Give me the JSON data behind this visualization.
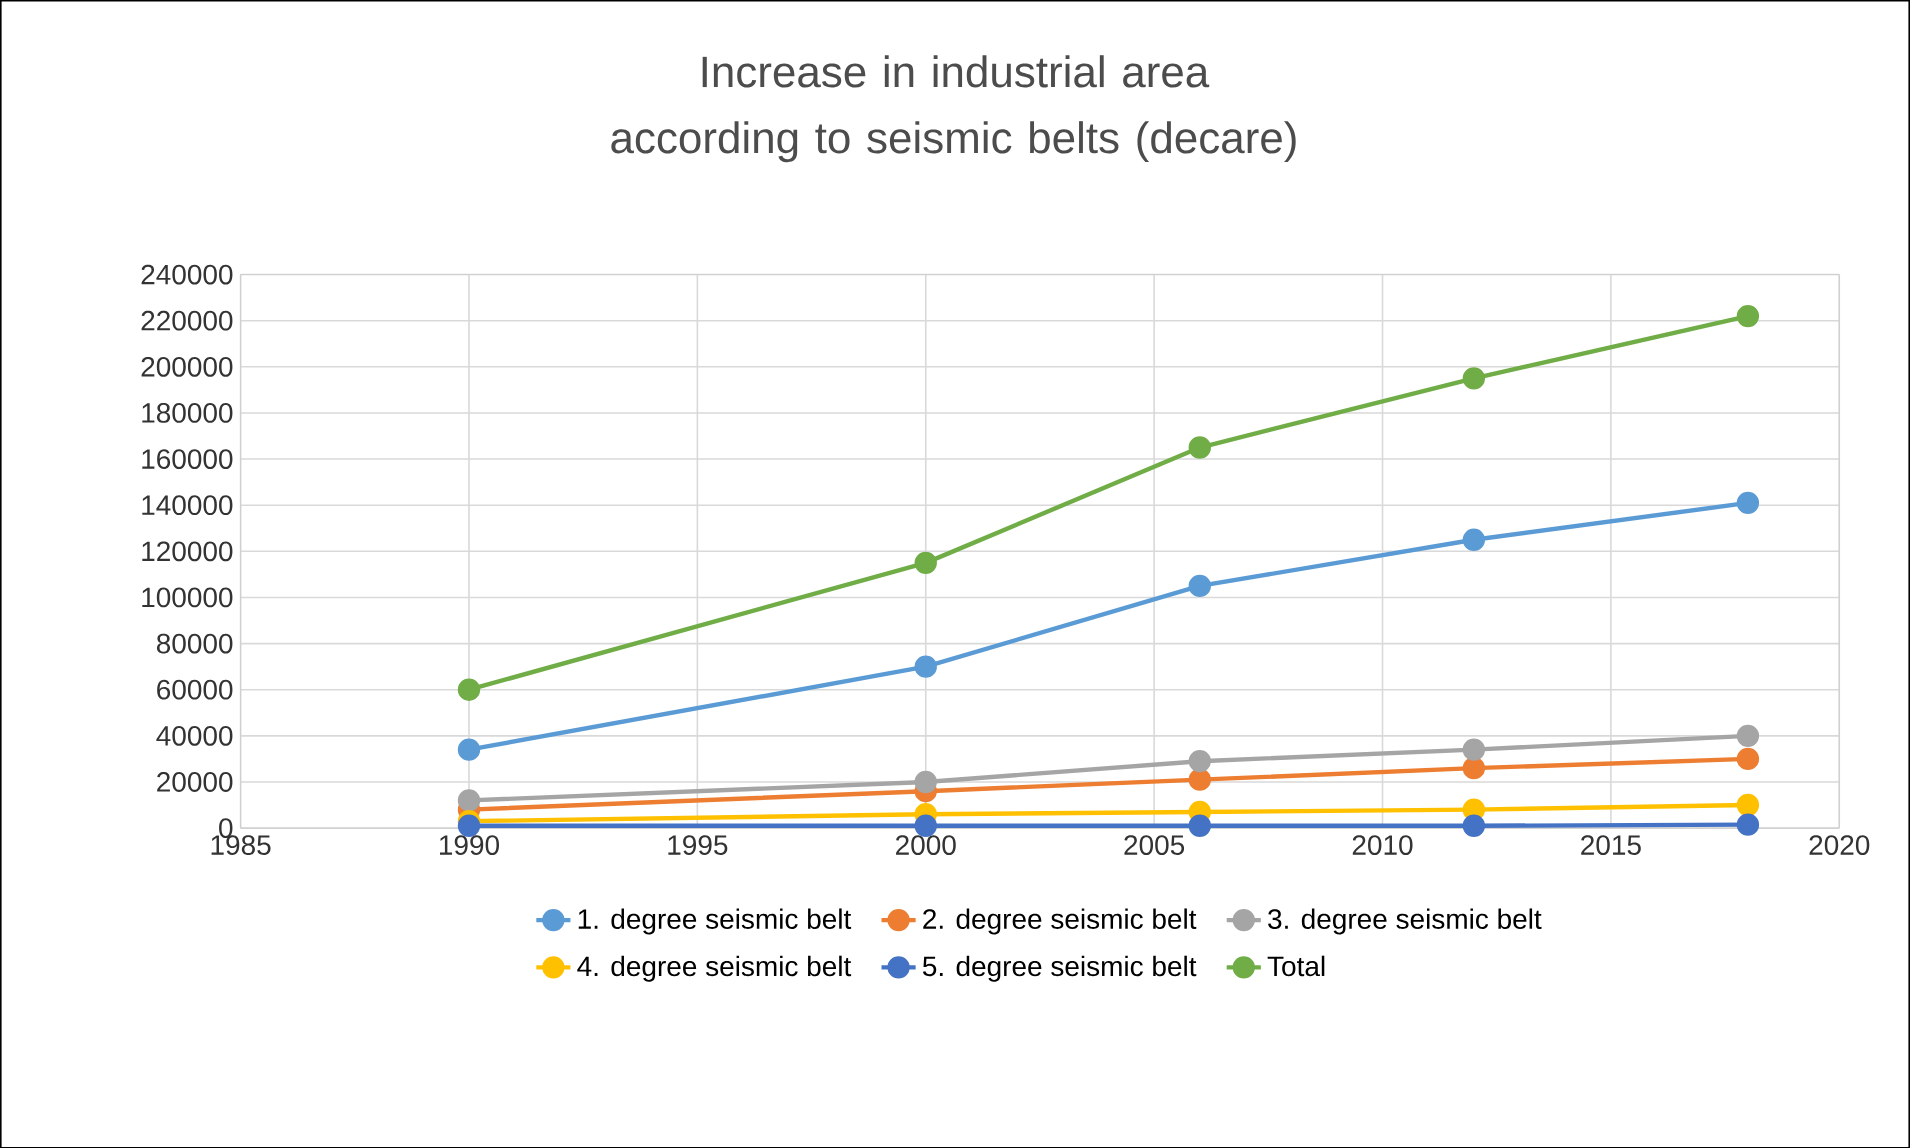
{
  "chart_data": {
    "type": "line",
    "title": "Increase in industrial area according to seismic belts (decare)",
    "x": [
      1990,
      2000,
      2006,
      2012,
      2018
    ],
    "series": [
      {
        "name": "1. degree seismic belt",
        "color": "#5b9bd5",
        "values": [
          34000,
          70000,
          105000,
          125000,
          141000
        ]
      },
      {
        "name": "2. degree seismic belt",
        "color": "#ed7d31",
        "values": [
          8000,
          16000,
          21000,
          26000,
          30000
        ]
      },
      {
        "name": "3. degree seismic belt",
        "color": "#a5a5a5",
        "values": [
          12000,
          20000,
          29000,
          34000,
          40000
        ]
      },
      {
        "name": "4. degree seismic belt",
        "color": "#ffc000",
        "values": [
          3000,
          6000,
          7000,
          8000,
          10000
        ]
      },
      {
        "name": "5. degree seismic belt",
        "color": "#4472c4",
        "values": [
          1000,
          1000,
          1000,
          1000,
          1500
        ]
      },
      {
        "name": "Total",
        "color": "#70ad47",
        "values": [
          60000,
          115000,
          165000,
          195000,
          222000
        ]
      }
    ],
    "xlim": [
      1985,
      2020
    ],
    "xticks": [
      1985,
      1990,
      1995,
      2000,
      2005,
      2010,
      2015,
      2020
    ],
    "ylim": [
      0,
      240000
    ],
    "yticks": [
      0,
      20000,
      40000,
      60000,
      80000,
      100000,
      120000,
      140000,
      160000,
      180000,
      200000,
      220000,
      240000
    ],
    "grid": true,
    "legend": "bottom",
    "marker": "circle",
    "line_style": "solid"
  }
}
